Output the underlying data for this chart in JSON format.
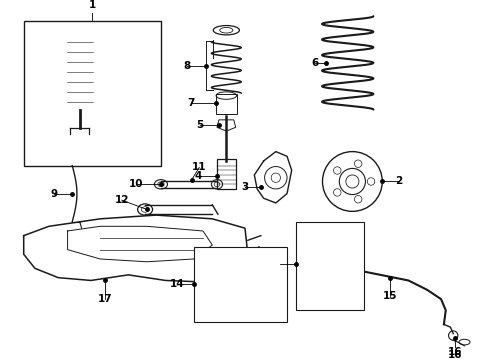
{
  "background_color": "#ffffff",
  "figure_width": 4.9,
  "figure_height": 3.6,
  "dpi": 100,
  "line_color": "#1a1a1a",
  "label_fontsize": 7.5
}
